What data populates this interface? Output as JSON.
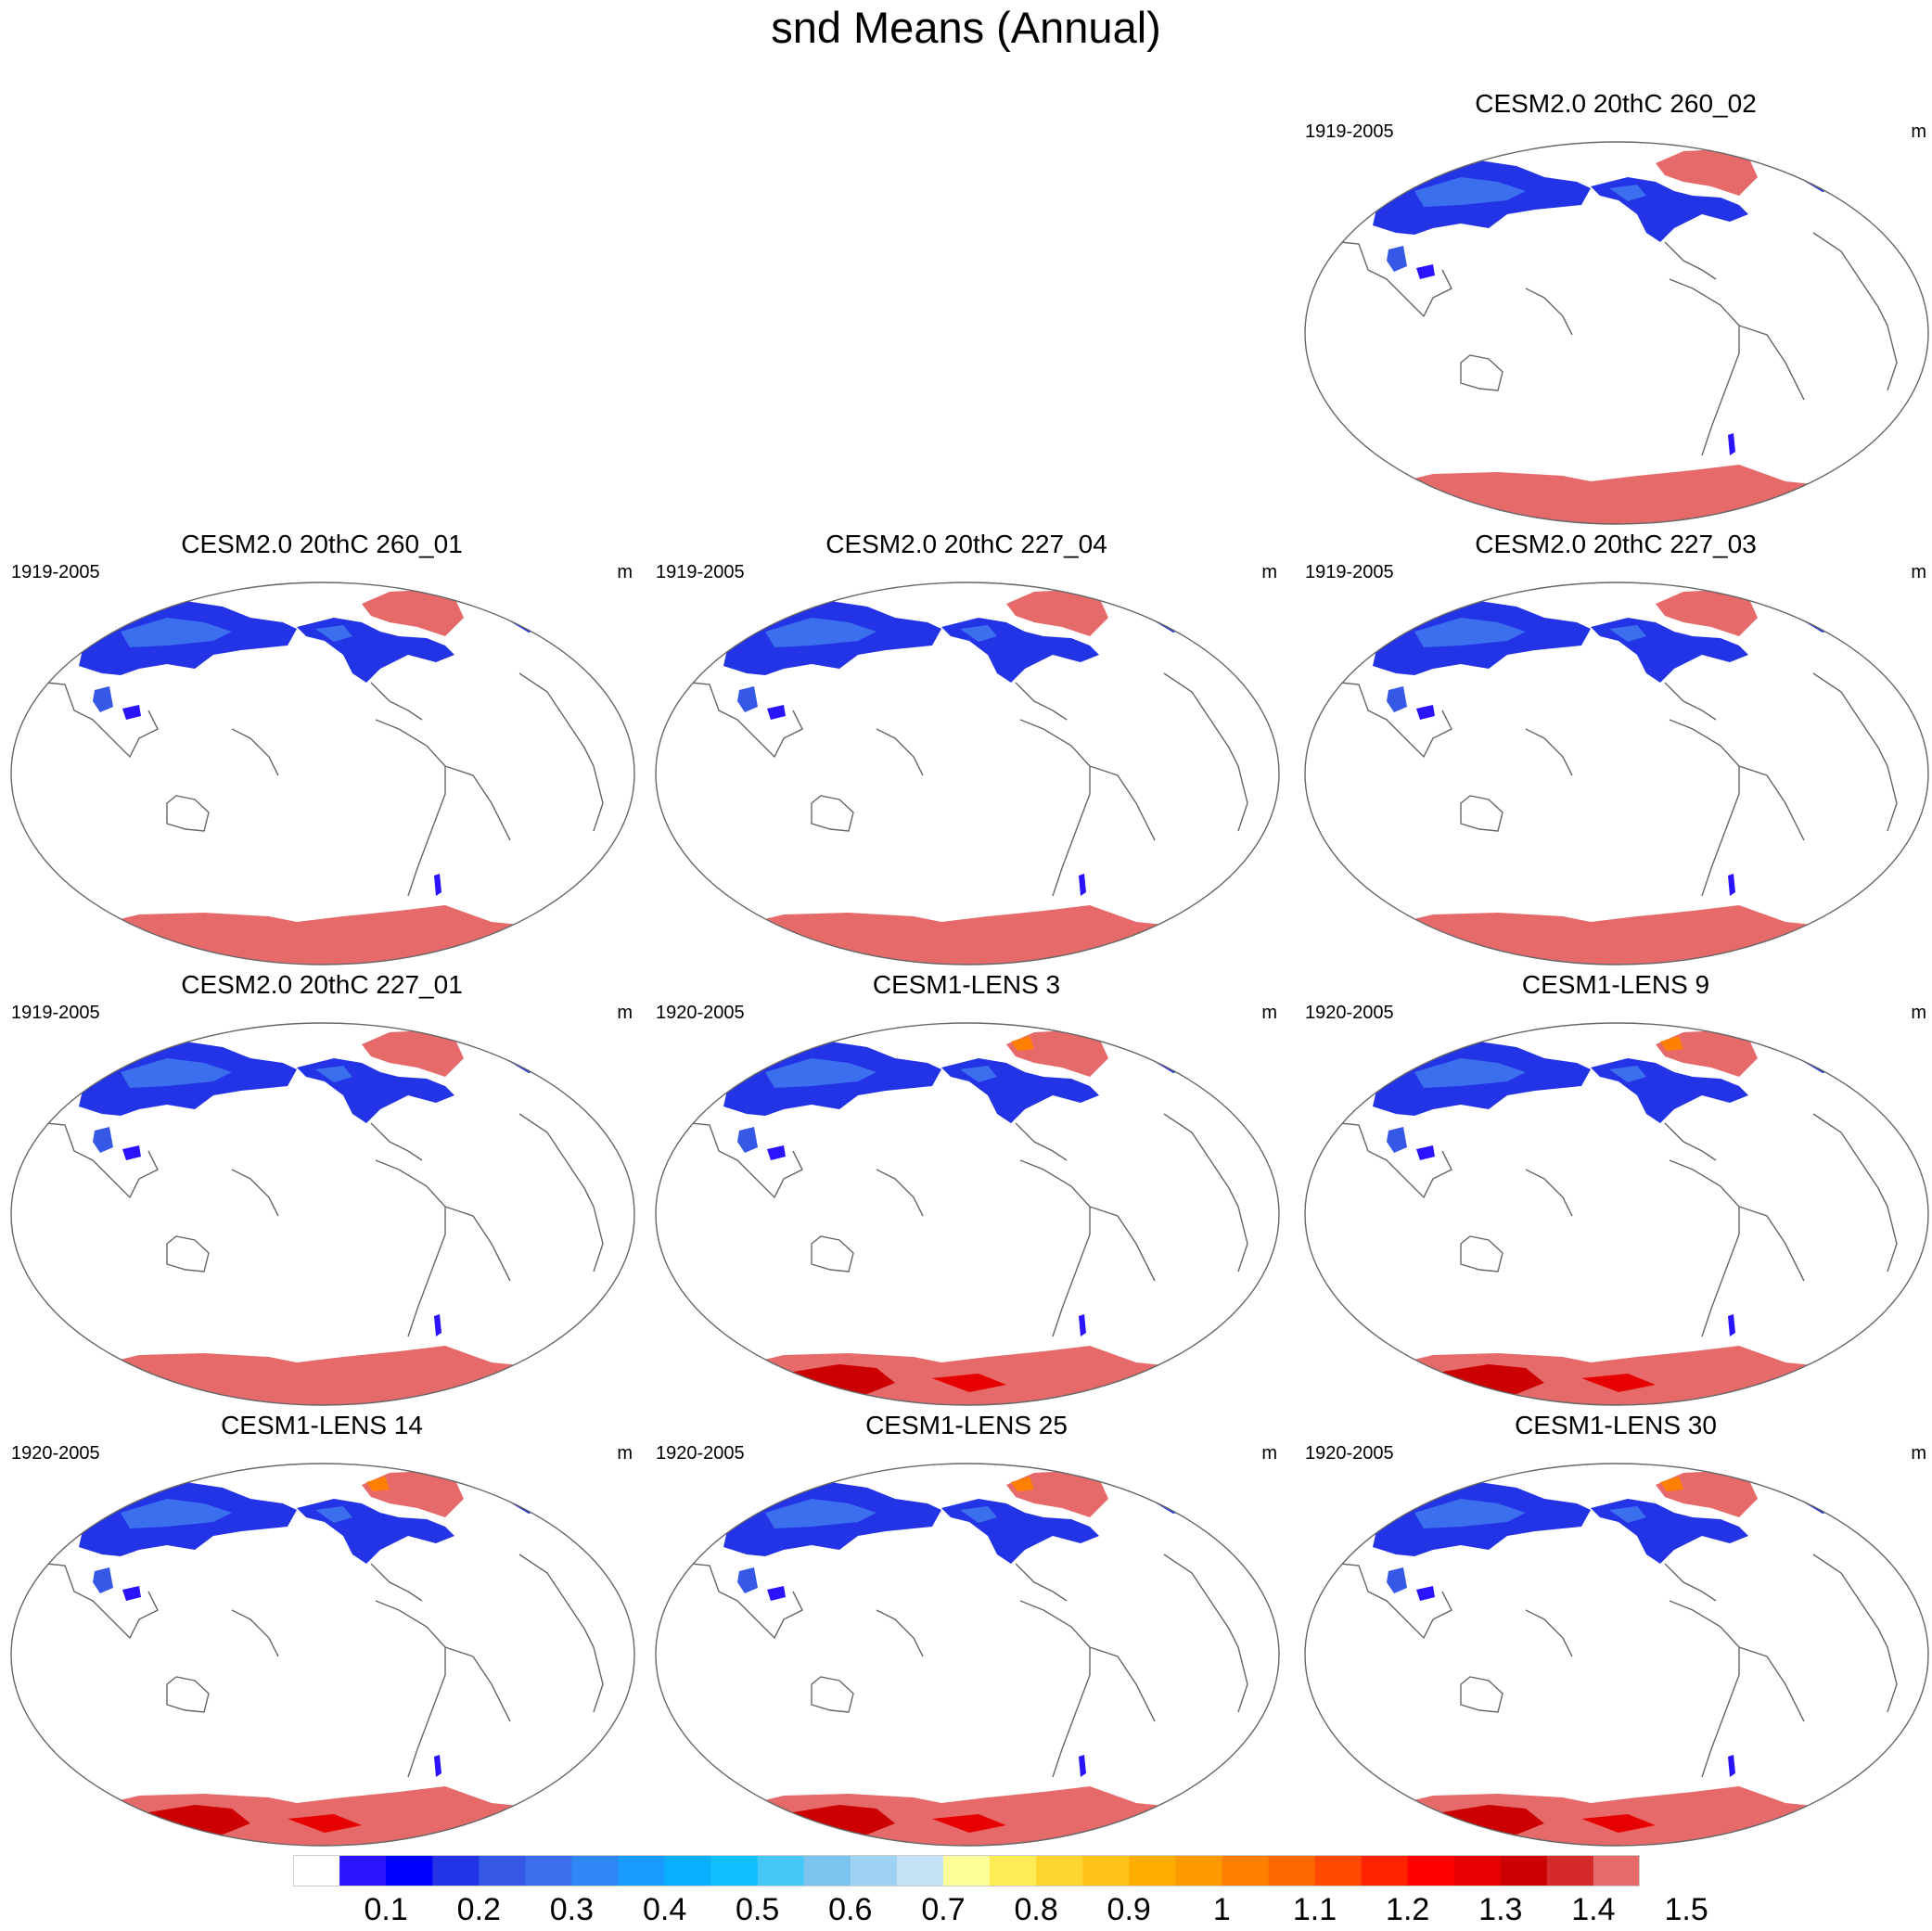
{
  "title": "snd Means (Annual)",
  "panels": [
    {
      "title": "CESM2.0 20thC 260_02",
      "period": "1919-2005",
      "units": "m",
      "model": "cesm2"
    },
    {
      "title": "CESM2.0 20thC 260_01",
      "period": "1919-2005",
      "units": "m",
      "model": "cesm2"
    },
    {
      "title": "CESM2.0 20thC 227_04",
      "period": "1919-2005",
      "units": "m",
      "model": "cesm2"
    },
    {
      "title": "CESM2.0 20thC 227_03",
      "period": "1919-2005",
      "units": "m",
      "model": "cesm2"
    },
    {
      "title": "CESM2.0 20thC 227_01",
      "period": "1919-2005",
      "units": "m",
      "model": "cesm2"
    },
    {
      "title": "CESM1-LENS 3",
      "period": "1920-2005",
      "units": "m",
      "model": "cesm1"
    },
    {
      "title": "CESM1-LENS 9",
      "period": "1920-2005",
      "units": "m",
      "model": "cesm1"
    },
    {
      "title": "CESM1-LENS 14",
      "period": "1920-2005",
      "units": "m",
      "model": "cesm1"
    },
    {
      "title": "CESM1-LENS 25",
      "period": "1920-2005",
      "units": "m",
      "model": "cesm1"
    },
    {
      "title": "CESM1-LENS 30",
      "period": "1920-2005",
      "units": "m",
      "model": "cesm1"
    }
  ],
  "colorbar": {
    "labels": [
      "0.1",
      "0.2",
      "0.3",
      "0.4",
      "0.5",
      "0.6",
      "0.7",
      "0.8",
      "0.9",
      "1",
      "1.1",
      "1.2",
      "1.3",
      "1.4",
      "1.5"
    ],
    "colors": [
      "#ffffff",
      "#2a14ff",
      "#0000ff",
      "#2333e6",
      "#3558e6",
      "#3c6fee",
      "#2f86f5",
      "#1a9bff",
      "#0ab0ff",
      "#10c0ff",
      "#45c8f8",
      "#7cc4f0",
      "#9ed2f2",
      "#c4e2f5",
      "#ffff99",
      "#ffeb55",
      "#ffd630",
      "#ffc21a",
      "#ffae00",
      "#ff9900",
      "#ff8000",
      "#ff6a00",
      "#ff4a00",
      "#ff2200",
      "#ff0000",
      "#e60000",
      "#cc0000",
      "#d42a2a",
      "#e66a6a"
    ]
  }
}
